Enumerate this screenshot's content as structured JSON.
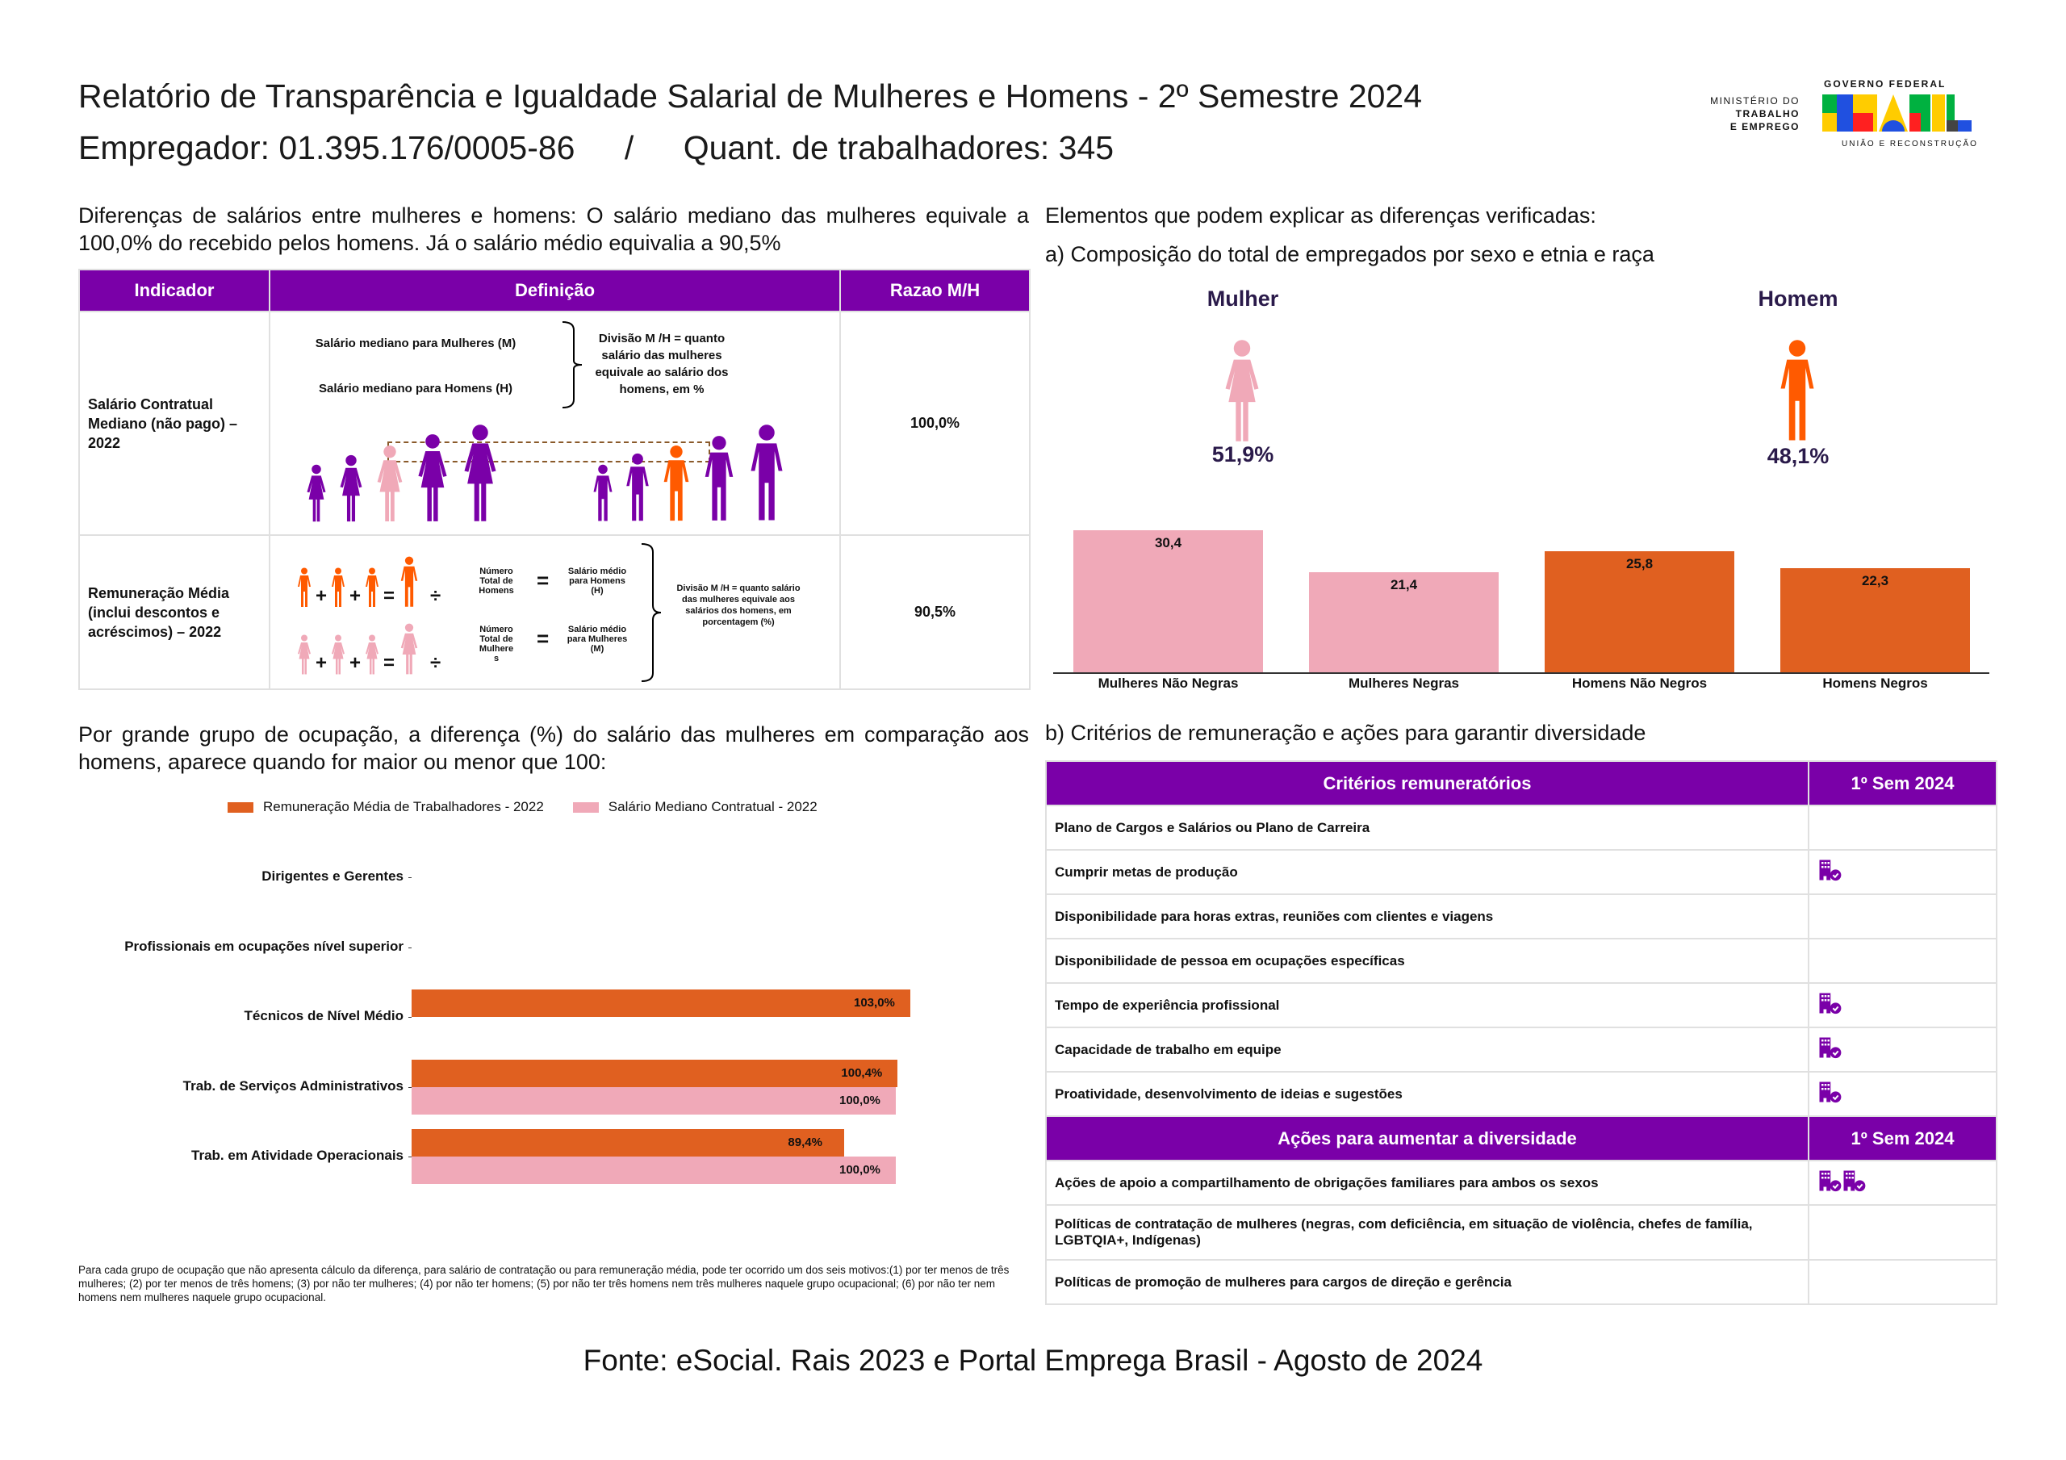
{
  "header": {
    "title": "Relatório de Transparência e Igualdade Salarial de Mulheres e Homens - 2º Semestre 2024",
    "employer": "Empregador: 01.395.176/0005-86",
    "separator": "/",
    "workers": "Quant. de trabalhadores: 345"
  },
  "logo": {
    "ministry_line1": "MINISTÉRIO DO",
    "ministry_line2": "TRABALHO",
    "ministry_line3": "E EMPREGO",
    "gov": "GOVERNO FEDERAL",
    "brasil": "BRASIL",
    "motto": "UNIÃO E RECONSTRUÇÃO"
  },
  "intro": "Diferenças de salários entre mulheres e homens: O salário mediano das mulheres equivale a 100,0% do recebido pelos homens. Já o salário médio equivalia a 90,5%",
  "indicator_table": {
    "headers": [
      "Indicador",
      "Definição",
      "Razao M/H"
    ],
    "rows": [
      {
        "indicator": "Salário Contratual Mediano (não pago) – 2022",
        "ratio": "100,0%",
        "def": {
          "women": "Salário mediano para Mulheres (M)",
          "men": "Salário mediano para Homens (H)",
          "division": "Divisão M /H = quanto salário das mulheres equivale ao salário dos homens, em %"
        }
      },
      {
        "indicator": "Remuneração Média (inclui descontos e acréscimos) – 2022",
        "ratio": "90,5%",
        "def": {
          "men_total": "Número Total de Homens",
          "men_avg": "Salário médio para Homens (H)",
          "women_total": "Número Total de Mulhere s",
          "women_avg": "Salário médio para Mulheres (M)",
          "division": "Divisão M /H = quanto salário das mulheres equivale aos salários dos homens, em porcentagem (%)"
        }
      }
    ]
  },
  "right_intro": "Elementos que podem explicar as diferenças verificadas:",
  "composition": {
    "title": "a) Composição do total de empregados por sexo e etnia e raça",
    "women_label": "Mulher",
    "women_pct": "51,9%",
    "men_label": "Homem",
    "men_pct": "48,1%"
  },
  "chart_data": [
    {
      "type": "bar",
      "categories": [
        "Mulheres Não Negras",
        "Mulheres Negras",
        "Homens Não Negros",
        "Homens Negros"
      ],
      "values": [
        30.4,
        21.4,
        25.8,
        22.3
      ],
      "labels": [
        "30,4",
        "21,4",
        "25,8",
        "22,3"
      ],
      "colors": [
        "#f0a9b8",
        "#f0a9b8",
        "#e06020",
        "#e06020"
      ]
    },
    {
      "type": "bar",
      "orientation": "horizontal",
      "categories": [
        "Dirigentes e Gerentes",
        "Profissionais em ocupações nível superior",
        "Técnicos de Nível Médio",
        "Trab. de Serviços Administrativos",
        "Trab. em Atividade Operacionais"
      ],
      "series": [
        {
          "name": "Remuneração Média de Trabalhadores - 2022",
          "color": "#e06020",
          "values": [
            null,
            null,
            103.0,
            100.4,
            89.4
          ],
          "labels": [
            "",
            "",
            "103,0%",
            "100,4%",
            "89,4%"
          ]
        },
        {
          "name": "Salário Mediano Contratual - 2022",
          "color": "#f0a9b8",
          "values": [
            null,
            null,
            null,
            100.0,
            100.0
          ],
          "labels": [
            "",
            "",
            "",
            "100,0%",
            "100,0%"
          ]
        }
      ],
      "legend": "top"
    }
  ],
  "occupation_intro": "Por grande grupo de ocupação, a diferença (%) do salário das mulheres em comparação aos homens, aparece quando for maior ou menor que 100:",
  "footnote": "Para cada grupo de ocupação que não apresenta cálculo da diferença, para salário de contratação ou para remuneração média, pode ter ocorrido um dos seis motivos:(1) por ter menos de três mulheres; (2) por ter menos de três homens; (3) por não ter mulheres; (4) por não ter homens; (5) por não ter três homens nem três mulheres naquele grupo ocupacional; (6) por não ter nem homens nem mulheres naquele grupo ocupacional.",
  "criteria": {
    "title": "b) Critérios de remuneração e ações para garantir diversidade",
    "header": [
      "Critérios remuneratórios",
      "1º Sem 2024"
    ],
    "rows": [
      {
        "label": "Plano de Cargos e Salários ou Plano de Carreira",
        "icons": 0
      },
      {
        "label": "Cumprir metas de produção",
        "icons": 1
      },
      {
        "label": "Disponibilidade para horas extras, reuniões com clientes e viagens",
        "icons": 0
      },
      {
        "label": "Disponibilidade de pessoa em ocupações específicas",
        "icons": 0
      },
      {
        "label": "Tempo de experiência profissional",
        "icons": 1
      },
      {
        "label": "Capacidade de trabalho em equipe",
        "icons": 1
      },
      {
        "label": "Proatividade, desenvolvimento de ideias e sugestões",
        "icons": 1
      }
    ],
    "header2": [
      "Ações para aumentar a diversidade",
      "1º Sem 2024"
    ],
    "rows2": [
      {
        "label": "Ações de apoio a compartilhamento de obrigações familiares para ambos os sexos",
        "icons": 2
      },
      {
        "label": "Políticas de contratação de mulheres (negras, com deficiência, em situação de violência, chefes de família, LGBTQIA+, Indígenas)",
        "icons": 0
      },
      {
        "label": "Políticas de promoção de mulheres para cargos de direção e gerência",
        "icons": 0
      }
    ]
  },
  "source": "Fonte: eSocial. Rais 2023 e Portal Emprega Brasil - Agosto de 2024",
  "colors": {
    "purple": "#7a00a8",
    "orange": "#e06020",
    "pink": "#f0a9b8",
    "accent_orange": "#ff5a00"
  }
}
